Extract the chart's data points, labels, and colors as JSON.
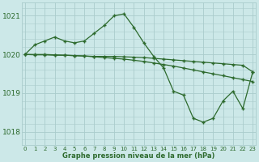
{
  "x": [
    0,
    1,
    2,
    3,
    4,
    5,
    6,
    7,
    8,
    9,
    10,
    11,
    12,
    13,
    14,
    15,
    16,
    17,
    18,
    19,
    20,
    21,
    22,
    23
  ],
  "series1": [
    1020.0,
    1020.25,
    1020.35,
    1020.45,
    1020.35,
    1020.3,
    1020.35,
    1020.55,
    1020.75,
    1021.0,
    1021.05,
    1020.7,
    1020.3,
    1019.95,
    1019.65,
    1019.05,
    1018.95,
    1018.35,
    1018.25,
    1018.35,
    1018.8,
    1019.05,
    1018.6,
    1019.55
  ],
  "series2": [
    1020.0,
    1019.99,
    1019.99,
    1019.98,
    1019.98,
    1019.97,
    1019.96,
    1019.95,
    1019.95,
    1019.95,
    1019.94,
    1019.93,
    1019.92,
    1019.9,
    1019.88,
    1019.86,
    1019.84,
    1019.82,
    1019.8,
    1019.78,
    1019.76,
    1019.74,
    1019.72,
    1019.55
  ],
  "series3": [
    1020.0,
    1020.0,
    1020.0,
    1019.99,
    1019.98,
    1019.97,
    1019.96,
    1019.94,
    1019.92,
    1019.9,
    1019.88,
    1019.85,
    1019.82,
    1019.78,
    1019.74,
    1019.7,
    1019.65,
    1019.6,
    1019.55,
    1019.5,
    1019.45,
    1019.4,
    1019.35,
    1019.3
  ],
  "line_color": "#2d6a2d",
  "bg_color": "#cce8e8",
  "grid_color": "#aacccc",
  "title": "Graphe pression niveau de la mer (hPa)",
  "yticks": [
    1018,
    1019,
    1020,
    1021
  ],
  "ylim": [
    1017.65,
    1021.35
  ],
  "xlim": [
    -0.3,
    23.3
  ]
}
